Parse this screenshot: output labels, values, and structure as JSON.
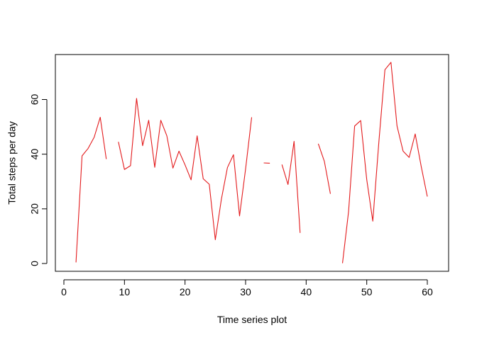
{
  "chart_data": {
    "type": "line",
    "title": "",
    "xlabel": "Time series plot",
    "ylabel": "Total steps per day",
    "xlim": [
      0,
      60
    ],
    "ylim": [
      0,
      73.6
    ],
    "x_ticks": [
      0,
      10,
      20,
      30,
      40,
      50,
      60
    ],
    "y_ticks": [
      0,
      20,
      40,
      60
    ],
    "x_tick_labels": [
      "0",
      "10",
      "20",
      "30",
      "40",
      "50",
      "60"
    ],
    "y_tick_labels": [
      "0",
      "20",
      "40",
      "60"
    ],
    "grid": false,
    "legend": "none",
    "series": [
      {
        "color": "#e31a1c",
        "points": [
          [
            1,
            null
          ],
          [
            2,
            0.4
          ],
          [
            3,
            39.4
          ],
          [
            4,
            42.1
          ],
          [
            5,
            46.2
          ],
          [
            6,
            53.5
          ],
          [
            7,
            38.2
          ],
          [
            8,
            null
          ],
          [
            9,
            44.5
          ],
          [
            10,
            34.4
          ],
          [
            11,
            35.8
          ],
          [
            12,
            60.4
          ],
          [
            13,
            43.1
          ],
          [
            14,
            52.4
          ],
          [
            15,
            35.2
          ],
          [
            16,
            52.4
          ],
          [
            17,
            46.7
          ],
          [
            18,
            34.9
          ],
          [
            19,
            41.1
          ],
          [
            20,
            36.1
          ],
          [
            21,
            30.6
          ],
          [
            22,
            46.7
          ],
          [
            23,
            31.0
          ],
          [
            24,
            29.0
          ],
          [
            25,
            8.7
          ],
          [
            26,
            23.5
          ],
          [
            27,
            35.1
          ],
          [
            28,
            39.8
          ],
          [
            29,
            17.4
          ],
          [
            30,
            34.6
          ],
          [
            31,
            53.5
          ],
          [
            32,
            null
          ],
          [
            33,
            36.8
          ],
          [
            34,
            36.7
          ],
          [
            35,
            null
          ],
          [
            36,
            36.2
          ],
          [
            37,
            28.9
          ],
          [
            38,
            44.7
          ],
          [
            39,
            11.2
          ],
          [
            40,
            null
          ],
          [
            41,
            null
          ],
          [
            42,
            43.8
          ],
          [
            43,
            37.4
          ],
          [
            44,
            25.5
          ],
          [
            45,
            null
          ],
          [
            46,
            0.1
          ],
          [
            47,
            19.0
          ],
          [
            48,
            50.3
          ],
          [
            49,
            52.3
          ],
          [
            50,
            30.7
          ],
          [
            51,
            15.5
          ],
          [
            52,
            44.4
          ],
          [
            53,
            70.9
          ],
          [
            54,
            73.6
          ],
          [
            55,
            50.3
          ],
          [
            56,
            41.1
          ],
          [
            57,
            38.8
          ],
          [
            58,
            47.4
          ],
          [
            59,
            35.4
          ],
          [
            60,
            24.5
          ],
          [
            61,
            null
          ]
        ]
      }
    ]
  }
}
